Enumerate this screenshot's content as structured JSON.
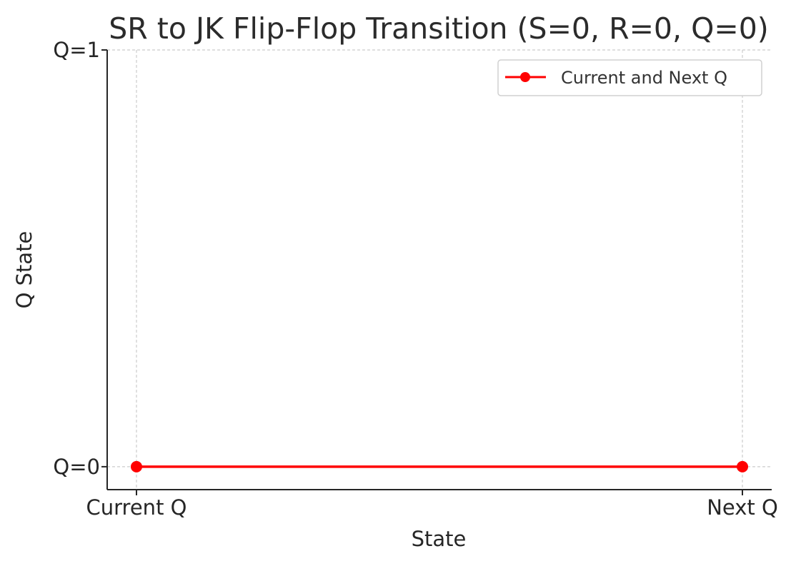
{
  "chart_data": {
    "type": "line",
    "title": "SR to JK Flip-Flop Transition (S=0, R=0, Q=0)",
    "xlabel": "State",
    "ylabel": "Q State",
    "categories": [
      "Current Q",
      "Next Q"
    ],
    "y_ticks": [
      {
        "value": 0,
        "label": "Q=0"
      },
      {
        "value": 1,
        "label": "Q=1"
      }
    ],
    "ylim": [
      -0.055,
      1.0
    ],
    "grid": true,
    "legend_position": "top-right",
    "series": [
      {
        "name": "Current and Next Q",
        "values": [
          0,
          0
        ],
        "color": "#ff0000",
        "marker": "circle"
      }
    ]
  }
}
